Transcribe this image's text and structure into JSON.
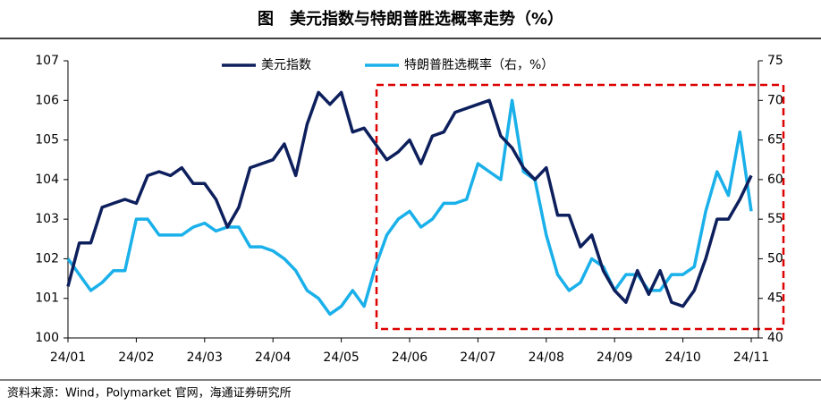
{
  "chart_data": {
    "type": "line",
    "title": "图　美元指数与特朗普胜选概率走势（%）",
    "source": "资料来源：Wind，Polymarket 官网，海通证券研究所",
    "categories": [
      "24/01",
      null,
      null,
      null,
      null,
      null,
      "24/02",
      null,
      null,
      null,
      null,
      null,
      "24/03",
      null,
      null,
      null,
      null,
      null,
      "24/04",
      null,
      null,
      null,
      null,
      null,
      "24/05",
      null,
      null,
      null,
      null,
      null,
      "24/06",
      null,
      null,
      null,
      null,
      null,
      "24/07",
      null,
      null,
      null,
      null,
      null,
      "24/08",
      null,
      null,
      null,
      null,
      null,
      "24/09",
      null,
      null,
      null,
      null,
      null,
      "24/10",
      null,
      null,
      null,
      null,
      null,
      "24/11"
    ],
    "series": [
      {
        "name": "美元指数",
        "color": "#0d1f5c",
        "values": [
          101.3,
          102.4,
          102.4,
          103.3,
          103.4,
          103.5,
          103.4,
          104.1,
          104.2,
          104.1,
          104.3,
          103.9,
          103.9,
          103.5,
          102.8,
          103.3,
          104.3,
          104.4,
          104.5,
          104.9,
          104.1,
          105.4,
          106.2,
          105.9,
          106.2,
          105.2,
          105.3,
          104.9,
          104.5,
          104.7,
          105.0,
          104.4,
          105.1,
          105.2,
          105.7,
          105.8,
          105.9,
          106.0,
          105.1,
          104.8,
          104.3,
          104.0,
          104.3,
          103.1,
          103.1,
          102.3,
          102.6,
          101.7,
          101.2,
          100.9,
          101.7,
          101.1,
          101.7,
          100.9,
          100.8,
          101.2,
          102.0,
          103.0,
          103.0,
          103.5,
          104.1
        ]
      },
      {
        "name": "特朗普胜选概率（右，%）",
        "color": "#1ab0ea",
        "axis": "y2",
        "values": [
          50,
          48,
          46,
          47,
          48.5,
          48.5,
          55,
          55,
          53,
          53,
          53,
          54,
          54.5,
          53.5,
          54,
          54,
          51.5,
          51.5,
          51,
          50,
          48.5,
          46,
          45,
          43,
          44,
          46,
          44,
          49,
          53,
          55,
          56,
          54,
          55,
          57,
          57,
          57.5,
          62,
          61,
          60,
          70,
          61,
          60,
          53,
          48,
          46,
          47,
          50,
          49,
          46,
          48,
          48,
          46,
          46,
          48,
          48,
          49,
          56,
          61,
          58,
          66,
          56
        ]
      }
    ],
    "ylim": [
      100,
      107
    ],
    "yticks": [
      100,
      101,
      102,
      103,
      104,
      105,
      106,
      107
    ],
    "y2lim": [
      40,
      75
    ],
    "y2ticks": [
      40,
      45,
      50,
      55,
      60,
      65,
      70,
      75
    ]
  }
}
